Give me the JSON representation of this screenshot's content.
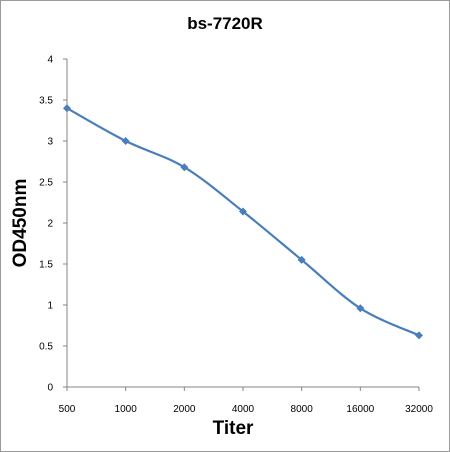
{
  "chart_data": {
    "type": "line",
    "title": "bs-7720R",
    "xlabel": "Titer",
    "ylabel": "OD450nm",
    "categories": [
      "500",
      "1000",
      "2000",
      "4000",
      "8000",
      "16000",
      "32000"
    ],
    "yticks": [
      "0",
      "0.5",
      "1",
      "1.5",
      "2",
      "2.5",
      "3",
      "3.5",
      "4"
    ],
    "ylim": [
      0,
      4
    ],
    "grid": false,
    "legend": "none",
    "series": [
      {
        "values": [
          3.4,
          3.0,
          2.68,
          2.14,
          1.55,
          0.96,
          0.63
        ],
        "color": "#4a7ebb"
      }
    ]
  }
}
